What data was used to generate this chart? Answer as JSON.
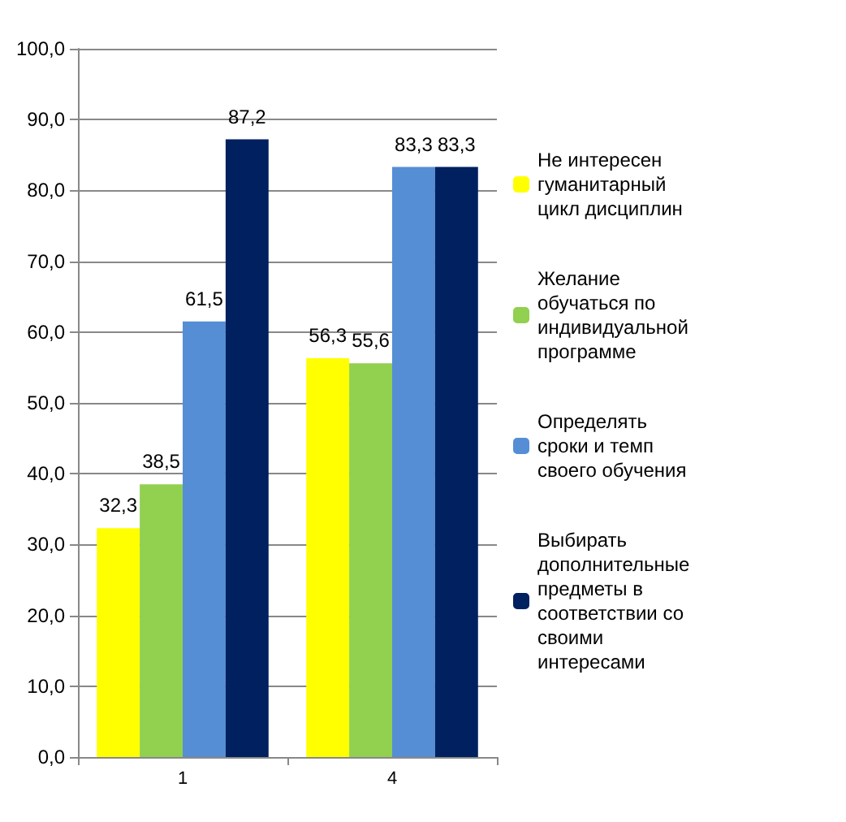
{
  "chart_data": {
    "type": "bar",
    "categories": [
      "1",
      "4"
    ],
    "series": [
      {
        "name": "Не интересен гуманитарный цикл дисциплин",
        "color": "#ffff00",
        "values": [
          32.3,
          56.3
        ],
        "value_labels": [
          "32,3",
          "56,3"
        ]
      },
      {
        "name": "Желание обучаться по индивидуальной программе",
        "color": "#92d050",
        "values": [
          38.5,
          55.6
        ],
        "value_labels": [
          "38,5",
          "55,6"
        ]
      },
      {
        "name": "Определять сроки и темп своего обучения",
        "color": "#558ed5",
        "values": [
          61.5,
          83.3
        ],
        "value_labels": [
          "61,5",
          "83,3"
        ]
      },
      {
        "name": "Выбирать дополнительные предметы в соответствии со своими интересами",
        "color": "#002060",
        "values": [
          87.2,
          83.3
        ],
        "value_labels": [
          "87,2",
          "83,3"
        ]
      }
    ],
    "ylim": [
      0,
      100
    ],
    "yticks": [
      {
        "value": 0,
        "label": "0,0"
      },
      {
        "value": 10,
        "label": "10,0"
      },
      {
        "value": 20,
        "label": "20,0"
      },
      {
        "value": 30,
        "label": "30,0"
      },
      {
        "value": 40,
        "label": "40,0"
      },
      {
        "value": 50,
        "label": "50,0"
      },
      {
        "value": 60,
        "label": "60,0"
      },
      {
        "value": 70,
        "label": "70,0"
      },
      {
        "value": 80,
        "label": "80,0"
      },
      {
        "value": 90,
        "label": "90,0"
      },
      {
        "value": 100,
        "label": "100,0"
      }
    ],
    "grid": "y",
    "legend": "right"
  }
}
